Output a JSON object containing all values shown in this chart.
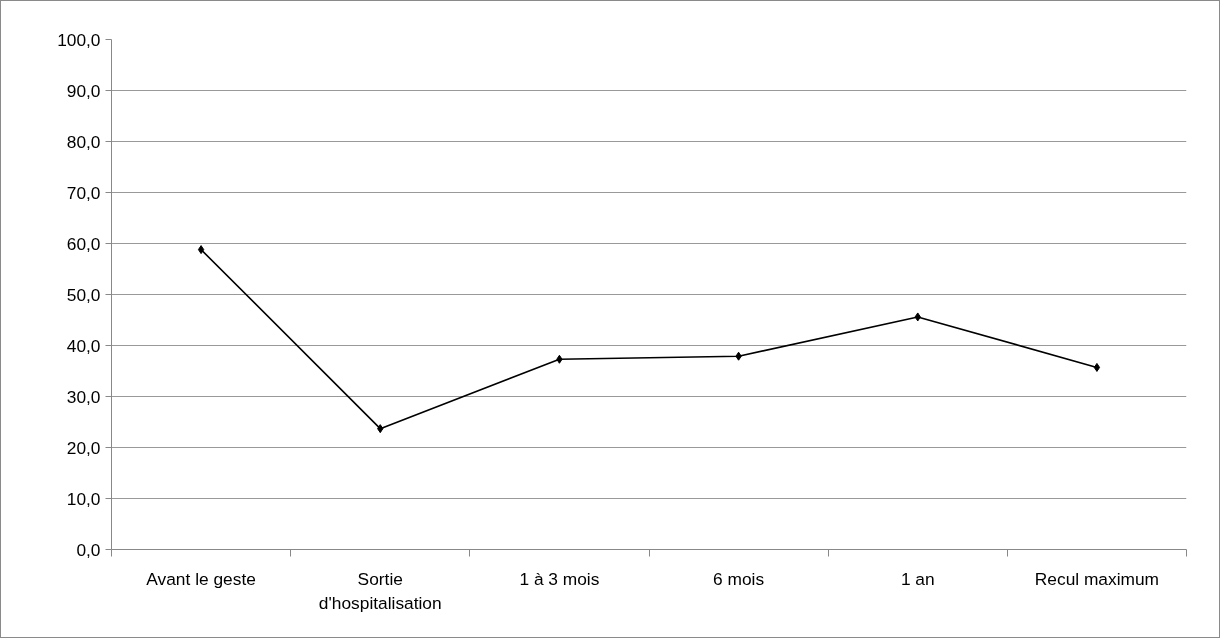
{
  "chart_data": {
    "type": "line",
    "categories": [
      "Avant le geste",
      "Sortie d'hospitalisation",
      "1 à 3 mois",
      "6 mois",
      "1 an",
      "Recul maximum"
    ],
    "series": [
      {
        "color": "#000000",
        "values": [
          58.8,
          23.7,
          37.3,
          37.9,
          45.6,
          35.7
        ]
      }
    ],
    "ylim": [
      0,
      100
    ],
    "yticks": [
      {
        "value": 0,
        "label": "0,0"
      },
      {
        "value": 10,
        "label": "10,0"
      },
      {
        "value": 20,
        "label": "20,0"
      },
      {
        "value": 30,
        "label": "30,0"
      },
      {
        "value": 40,
        "label": "40,0"
      },
      {
        "value": 50,
        "label": "50,0"
      },
      {
        "value": 60,
        "label": "60,0"
      },
      {
        "value": 70,
        "label": "70,0"
      },
      {
        "value": 80,
        "label": "80,0"
      },
      {
        "value": 90,
        "label": "90,0"
      },
      {
        "value": 100,
        "label": "100,0"
      }
    ],
    "grid": "y",
    "marker": "diamond",
    "line_style": "solid"
  }
}
